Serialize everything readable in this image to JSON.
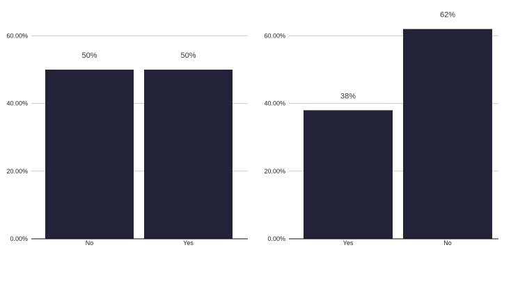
{
  "chart_data": [
    {
      "type": "bar",
      "categories": [
        "No",
        "Yes"
      ],
      "values": [
        50,
        50
      ],
      "data_labels": [
        "50%",
        "50%"
      ],
      "yticks": [
        0,
        20,
        40,
        60
      ],
      "ytick_labels": [
        "0.00%",
        "20.00%",
        "40.00%",
        "60.00%"
      ],
      "ylim": [
        0,
        60
      ],
      "grid": true,
      "bar_color": "#222238",
      "title": "",
      "xlabel": "",
      "ylabel": ""
    },
    {
      "type": "bar",
      "categories": [
        "Yes",
        "No"
      ],
      "values": [
        38,
        62
      ],
      "data_labels": [
        "38%",
        "62%"
      ],
      "yticks": [
        0,
        20,
        40,
        60
      ],
      "ytick_labels": [
        "0.00%",
        "20.00%",
        "40.00%",
        "60.00%"
      ],
      "ylim": [
        0,
        60
      ],
      "grid": true,
      "bar_color": "#222238",
      "title": "",
      "xlabel": "",
      "ylabel": ""
    }
  ]
}
